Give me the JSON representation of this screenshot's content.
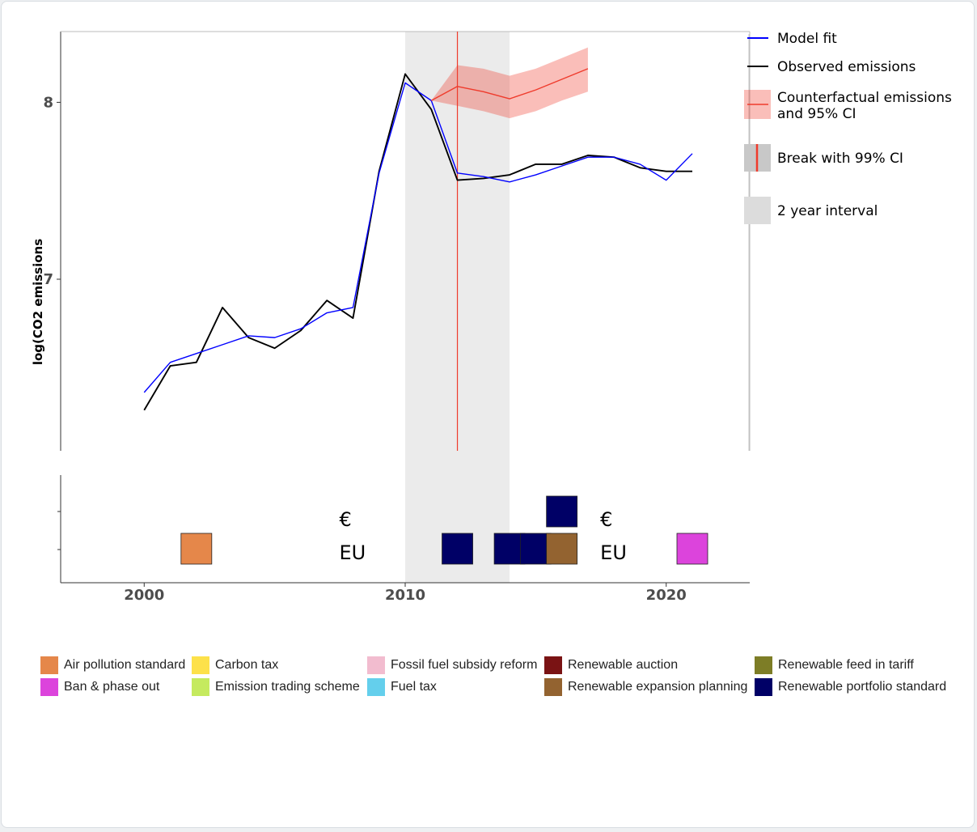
{
  "chart_data": {
    "type": "line",
    "ylabel": "log(CO2 emissions",
    "xlabel": "",
    "xlim": [
      1996.8,
      2023.2
    ],
    "ylim": [
      6.03,
      8.4
    ],
    "x_ticks": [
      2000,
      2010,
      2020
    ],
    "x_tick_labels": [
      "2000",
      "2010",
      "2020"
    ],
    "y_ticks": [
      7,
      8
    ],
    "y_tick_labels": [
      "7",
      "8"
    ],
    "grid": false,
    "legend_position": "right",
    "series": [
      {
        "name": "Model fit",
        "color": "#0000ff",
        "x": [
          2000,
          2001,
          2002,
          2003,
          2004,
          2005,
          2006,
          2007,
          2008,
          2009,
          2010,
          2011,
          2012,
          2013,
          2014,
          2015,
          2016,
          2017,
          2018,
          2019,
          2020,
          2021
        ],
        "y": [
          6.36,
          6.53,
          6.58,
          6.63,
          6.68,
          6.67,
          6.72,
          6.81,
          6.84,
          7.6,
          8.11,
          8.01,
          7.6,
          7.58,
          7.55,
          7.59,
          7.64,
          7.69,
          7.69,
          7.65,
          7.56,
          7.71
        ]
      },
      {
        "name": "Observed emissions",
        "color": "#000000",
        "x": [
          2000,
          2001,
          2002,
          2003,
          2004,
          2005,
          2006,
          2007,
          2008,
          2009,
          2010,
          2011,
          2012,
          2013,
          2014,
          2015,
          2016,
          2017,
          2018,
          2019,
          2020,
          2021
        ],
        "y": [
          6.26,
          6.51,
          6.53,
          6.84,
          6.67,
          6.61,
          6.71,
          6.88,
          6.78,
          7.61,
          8.16,
          7.96,
          7.56,
          7.57,
          7.59,
          7.65,
          7.65,
          7.7,
          7.69,
          7.63,
          7.61,
          7.61
        ]
      },
      {
        "name": "Counterfactual emissions and 95% CI",
        "color": "#ef3b2c",
        "x": [
          2011,
          2012,
          2013,
          2014,
          2015,
          2016,
          2017
        ],
        "y": [
          8.01,
          8.09,
          8.06,
          8.02,
          8.07,
          8.13,
          8.19
        ],
        "lower": [
          8.01,
          7.98,
          7.95,
          7.91,
          7.95,
          8.01,
          8.06
        ],
        "upper": [
          8.01,
          8.21,
          8.19,
          8.15,
          8.19,
          8.25,
          8.31
        ]
      }
    ],
    "break_line": {
      "x": 2012,
      "label": "Break with 99% CI",
      "color": "#ef3b2c"
    },
    "break_interval": {
      "x_start": 2010,
      "x_end": 2014,
      "label": "2 year interval"
    },
    "policies": [
      {
        "year": 2002,
        "row": 1,
        "type": "Air pollution standard"
      },
      {
        "year": 2008,
        "row": 1,
        "text": "EU"
      },
      {
        "year": 2008,
        "row": 2,
        "text": "€"
      },
      {
        "year": 2012,
        "row": 1,
        "type": "Renewable portfolio standard"
      },
      {
        "year": 2014,
        "row": 1,
        "type": "Renewable portfolio standard"
      },
      {
        "year": 2015,
        "row": 1,
        "type": "Renewable portfolio standard"
      },
      {
        "year": 2016,
        "row": 1,
        "type": "Renewable expansion planning"
      },
      {
        "year": 2016,
        "row": 2,
        "type": "Renewable portfolio standard"
      },
      {
        "year": 2018,
        "row": 1,
        "text": "EU"
      },
      {
        "year": 2018,
        "row": 2,
        "text": "€"
      },
      {
        "year": 2021,
        "row": 1,
        "type": "Ban & phase out"
      }
    ],
    "legend": [
      {
        "key": "model",
        "label": "Model fit"
      },
      {
        "key": "observed",
        "label": "Observed emissions"
      },
      {
        "key": "counterfactual",
        "label_line1": "Counterfactual emissions",
        "label_line2": "and 95% CI"
      },
      {
        "key": "break",
        "label": "Break with 99% CI"
      },
      {
        "key": "interval",
        "label": "2 year interval"
      }
    ],
    "policy_types": [
      {
        "name": "Air pollution standard",
        "color": "#e5874a"
      },
      {
        "name": "Ban & phase out",
        "color": "#dc44dc"
      },
      {
        "name": "Carbon tax",
        "color": "#fde14a"
      },
      {
        "name": "Emission trading scheme",
        "color": "#c5ea5e"
      },
      {
        "name": "Fossil fuel subsidy reform",
        "color": "#f2bccf"
      },
      {
        "name": "Fuel tax",
        "color": "#64cfec"
      },
      {
        "name": "Renewable auction",
        "color": "#7a1314"
      },
      {
        "name": "Renewable expansion planning",
        "color": "#936330"
      },
      {
        "name": "Renewable feed in tariff",
        "color": "#7d7d26"
      },
      {
        "name": "Renewable portfolio standard",
        "color": "#000066"
      }
    ]
  }
}
